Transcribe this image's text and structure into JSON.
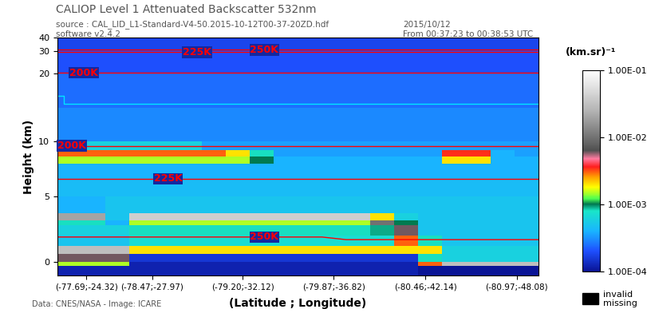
{
  "chart_data": {
    "type": "heatmap",
    "title": "CALIOP Level 1 Attenuated Backscatter 532nm",
    "annotations": [
      "source : CAL_LID_L1-Standard-V4-50.2015-10-12T00-37-20ZD.hdf",
      "software v2.4.2",
      "2015/10/12",
      "From 00:37:23 to 00:38:53 UTC",
      "Data: CNES/NASA - Image: ICARE"
    ],
    "x_label": "(Latitude ; Longitude)",
    "y_label": "Height (km)",
    "xlim": [
      0,
      100
    ],
    "xticks": [
      {
        "value": 6.0,
        "label": "(-77.69;-24.32)"
      },
      {
        "value": 19.7,
        "label": "(-78.47;-27.97)"
      },
      {
        "value": 38.5,
        "label": "(-79.20;-32.12)"
      },
      {
        "value": 57.4,
        "label": "(-79.87;-36.82)"
      },
      {
        "value": 76.5,
        "label": "(-80.46;-42.14)"
      },
      {
        "value": 95.5,
        "label": "(-80.97;-48.08)"
      }
    ],
    "ylim": [
      -1,
      40
    ],
    "yticks": [
      0,
      5,
      10,
      20,
      30,
      40
    ],
    "x_edges": [
      0,
      5,
      10,
      15,
      20,
      25,
      30,
      35,
      40,
      45,
      50,
      55,
      60,
      65,
      70,
      75,
      80,
      85,
      90,
      95,
      100
    ],
    "y_edges": [
      -1,
      -0.3,
      0,
      0.6,
      1.2,
      2,
      2.8,
      3.2,
      3.7,
      5,
      6.5,
      8,
      8.6,
      9.2,
      10,
      15,
      20,
      30,
      40
    ],
    "cells": [
      [
        0.00012,
        0.00012,
        0.00012,
        0.00012,
        0.00012,
        0.00012,
        0.00012,
        0.00012,
        0.00012,
        0.00012,
        0.00012,
        0.00012,
        0.00012,
        0.00012,
        0.00012,
        0.0001,
        0.0001,
        0.0001,
        0.0001,
        0.0001
      ],
      [
        0.0015,
        0.0015,
        0.0015,
        0.00012,
        0.00012,
        0.00012,
        0.00012,
        0.00012,
        0.00012,
        0.00012,
        0.00012,
        0.00012,
        0.00012,
        0.00012,
        0.00012,
        0.003,
        0.03,
        0.03,
        0.03,
        0.03
      ],
      [
        0.006,
        0.006,
        0.006,
        0.00015,
        0.00015,
        0.00015,
        0.00015,
        0.00015,
        0.00015,
        0.00015,
        0.00015,
        0.00015,
        0.00015,
        0.00015,
        0.00015,
        0.0008,
        0.0006,
        0.0006,
        0.0006,
        0.0006
      ],
      [
        0.03,
        0.03,
        0.03,
        0.002,
        0.002,
        0.002,
        0.002,
        0.002,
        0.002,
        0.002,
        0.002,
        0.002,
        0.002,
        0.002,
        0.002,
        0.002,
        0.0006,
        0.0006,
        0.0006,
        0.0006
      ],
      [
        0.0005,
        0.0005,
        0.0005,
        0.0007,
        0.0007,
        0.0007,
        0.0007,
        0.0007,
        0.0007,
        0.0007,
        0.0007,
        0.0007,
        0.0007,
        0.0007,
        0.003,
        0.0008,
        0.0005,
        0.0005,
        0.0005,
        0.0005
      ],
      [
        0.0006,
        0.0006,
        0.0006,
        0.0008,
        0.0008,
        0.0008,
        0.0008,
        0.0008,
        0.0008,
        0.0008,
        0.0008,
        0.0008,
        0.0008,
        0.0009,
        0.006,
        0.0005,
        0.0005,
        0.0005,
        0.0005,
        0.0005
      ],
      [
        0.0008,
        0.0008,
        0.0004,
        0.0015,
        0.0015,
        0.0015,
        0.0015,
        0.0015,
        0.0015,
        0.0015,
        0.0015,
        0.0015,
        0.0015,
        0.01,
        0.001,
        0.0005,
        0.0005,
        0.0005,
        0.0005,
        0.0005
      ],
      [
        0.02,
        0.02,
        0.0005,
        0.04,
        0.04,
        0.04,
        0.04,
        0.04,
        0.04,
        0.04,
        0.04,
        0.04,
        0.04,
        0.002,
        0.0006,
        0.0005,
        0.0005,
        0.0005,
        0.0005,
        0.0005
      ],
      [
        0.0004,
        0.0004,
        0.0005,
        0.0005,
        0.0005,
        0.0005,
        0.0005,
        0.0005,
        0.0005,
        0.0005,
        0.0005,
        0.0005,
        0.0005,
        0.0005,
        0.0005,
        0.0005,
        0.0005,
        0.0005,
        0.0005,
        0.0005
      ],
      [
        0.00045,
        0.00045,
        0.00045,
        0.00045,
        0.00045,
        0.00045,
        0.00045,
        0.00045,
        0.00045,
        0.00045,
        0.00045,
        0.00045,
        0.00045,
        0.00045,
        0.00045,
        0.00045,
        0.00045,
        0.00045,
        0.00045,
        0.00045
      ],
      [
        0.0004,
        0.0004,
        0.0004,
        0.0004,
        0.0004,
        0.0004,
        0.0004,
        0.0004,
        0.0004,
        0.0004,
        0.0004,
        0.0004,
        0.0004,
        0.0004,
        0.0004,
        0.0004,
        0.0004,
        0.0004,
        0.0004,
        0.0004
      ],
      [
        0.0015,
        0.0015,
        0.0015,
        0.0015,
        0.0015,
        0.0015,
        0.0015,
        0.0015,
        0.001,
        0.0004,
        0.0004,
        0.0004,
        0.0004,
        0.0004,
        0.0004,
        0.0004,
        0.002,
        0.002,
        0.0004,
        0.0004
      ],
      [
        0.003,
        0.003,
        0.003,
        0.003,
        0.003,
        0.003,
        0.003,
        0.002,
        0.0008,
        0.00035,
        0.00035,
        0.00035,
        0.00035,
        0.00035,
        0.00035,
        0.00035,
        0.0035,
        0.0035,
        0.0004,
        0.00035
      ],
      [
        0.0006,
        0.0006,
        0.0006,
        0.0006,
        0.0006,
        0.0006,
        0.00035,
        0.00035,
        0.00035,
        0.00035,
        0.00035,
        0.00035,
        0.00035,
        0.00035,
        0.00035,
        0.00035,
        0.00035,
        0.00035,
        0.00035,
        0.00035
      ],
      [
        0.0003,
        0.0003,
        0.0003,
        0.0003,
        0.0003,
        0.0003,
        0.0003,
        0.0003,
        0.0003,
        0.0003,
        0.0003,
        0.0003,
        0.0003,
        0.0003,
        0.0003,
        0.0003,
        0.0003,
        0.0003,
        0.0003,
        0.0003
      ],
      [
        0.00025,
        0.00025,
        0.00025,
        0.00025,
        0.00025,
        0.00025,
        0.00025,
        0.00025,
        0.00025,
        0.00025,
        0.00025,
        0.00025,
        0.00025,
        0.00025,
        0.00025,
        0.00025,
        0.00025,
        0.00025,
        0.00025,
        0.00025
      ],
      [
        0.0002,
        0.0002,
        0.0002,
        0.0002,
        0.0002,
        0.0002,
        0.0002,
        0.0002,
        0.0002,
        0.0002,
        0.0002,
        0.0002,
        0.0002,
        0.0002,
        0.0002,
        0.0002,
        0.0002,
        0.0002,
        0.0002,
        0.0002
      ],
      [
        0.00018,
        0.00018,
        0.00018,
        0.00018,
        0.00018,
        0.00018,
        0.00018,
        0.00018,
        0.00018,
        0.00018,
        0.00018,
        0.00018,
        0.00018,
        0.00018,
        0.00018,
        0.00018,
        0.00018,
        0.00018,
        0.00018,
        0.00018
      ]
    ],
    "lines": [
      {
        "label": "250K",
        "color": "#ff0000",
        "x": [
          0,
          100
        ],
        "y": [
          31,
          31
        ]
      },
      {
        "label": "225K",
        "color": "#ff0000",
        "x": [
          0,
          100
        ],
        "y": [
          29.5,
          29.5
        ]
      },
      {
        "label": "200K",
        "color": "#ff0000",
        "x": [
          0,
          100
        ],
        "y": [
          20.3,
          20.3
        ]
      },
      {
        "label": "200K",
        "color": "#ff0000",
        "x": [
          0,
          100
        ],
        "y": [
          9.6,
          9.6
        ]
      },
      {
        "label": "225K",
        "color": "#ff0000",
        "x": [
          0,
          100
        ],
        "y": [
          6.6,
          6.6
        ]
      },
      {
        "label": "250K",
        "color": "#ff0000",
        "x": [
          0,
          55,
          60,
          100
        ],
        "y": [
          1.9,
          1.9,
          1.7,
          1.7
        ]
      },
      {
        "color": "#00e5ff",
        "x": [
          0,
          1.3,
          1.3,
          100
        ],
        "y": [
          16.7,
          16.7,
          15.5,
          15.5
        ]
      }
    ],
    "colorbar": {
      "label": "(km.sr)⁻¹",
      "lim": [
        0.0001,
        0.1
      ],
      "log": true,
      "ticks": [
        {
          "value": 0.0001,
          "label": "1.00E-04"
        },
        {
          "value": 0.001,
          "label": "1.00E-03"
        },
        {
          "value": 0.01,
          "label": "1.00E-02"
        },
        {
          "value": 0.1,
          "label": "1.00E-01"
        }
      ]
    },
    "missing": {
      "labels": [
        "invalid",
        "missing"
      ],
      "color": "#000000"
    }
  }
}
